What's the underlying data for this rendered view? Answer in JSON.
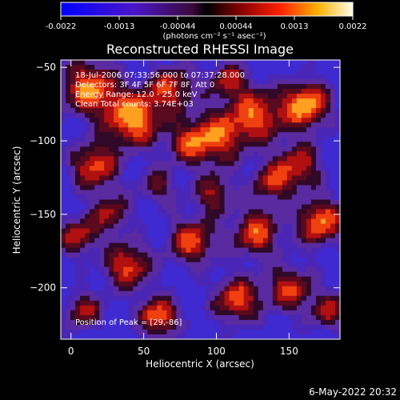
{
  "colorbar": {
    "ticks": [
      "-0.0022",
      "-0.0013",
      "-0.00044",
      "0.00044",
      "0.0013",
      "0.0022"
    ],
    "units_label": "(photons cm⁻² s⁻¹ asec⁻²)",
    "range": [
      -0.0022,
      0.0022
    ]
  },
  "chart_data": {
    "type": "heatmap",
    "title": "Reconstructed RHESSI Image",
    "xlabel": "Heliocentric X (arcsec)",
    "ylabel": "Heliocentric Y (arcsec)",
    "xlim": [
      -7,
      185
    ],
    "ylim": [
      -235,
      -45
    ],
    "x_ticks": [
      0,
      50,
      100,
      150
    ],
    "y_ticks": [
      -50,
      -100,
      -150,
      -200
    ],
    "x_tick_labels": [
      "0",
      "50",
      "100",
      "150"
    ],
    "y_tick_labels": [
      "−50",
      "−100",
      "−150",
      "−200"
    ],
    "annotations": {
      "time": "18-Jul-2006 07:33:56.000 to 07:37:28.000",
      "detectors": "Detectors: 3F 4F 5F 6F 7F 8F, Att 0",
      "energy": "Energy Range: 12.0 - 25.0 keV",
      "clean": "Clean    Total counts: 3.74E+03",
      "peak": "Position of Peak = [29,-86]"
    }
  },
  "timestamp": "6-May-2022 20:32"
}
